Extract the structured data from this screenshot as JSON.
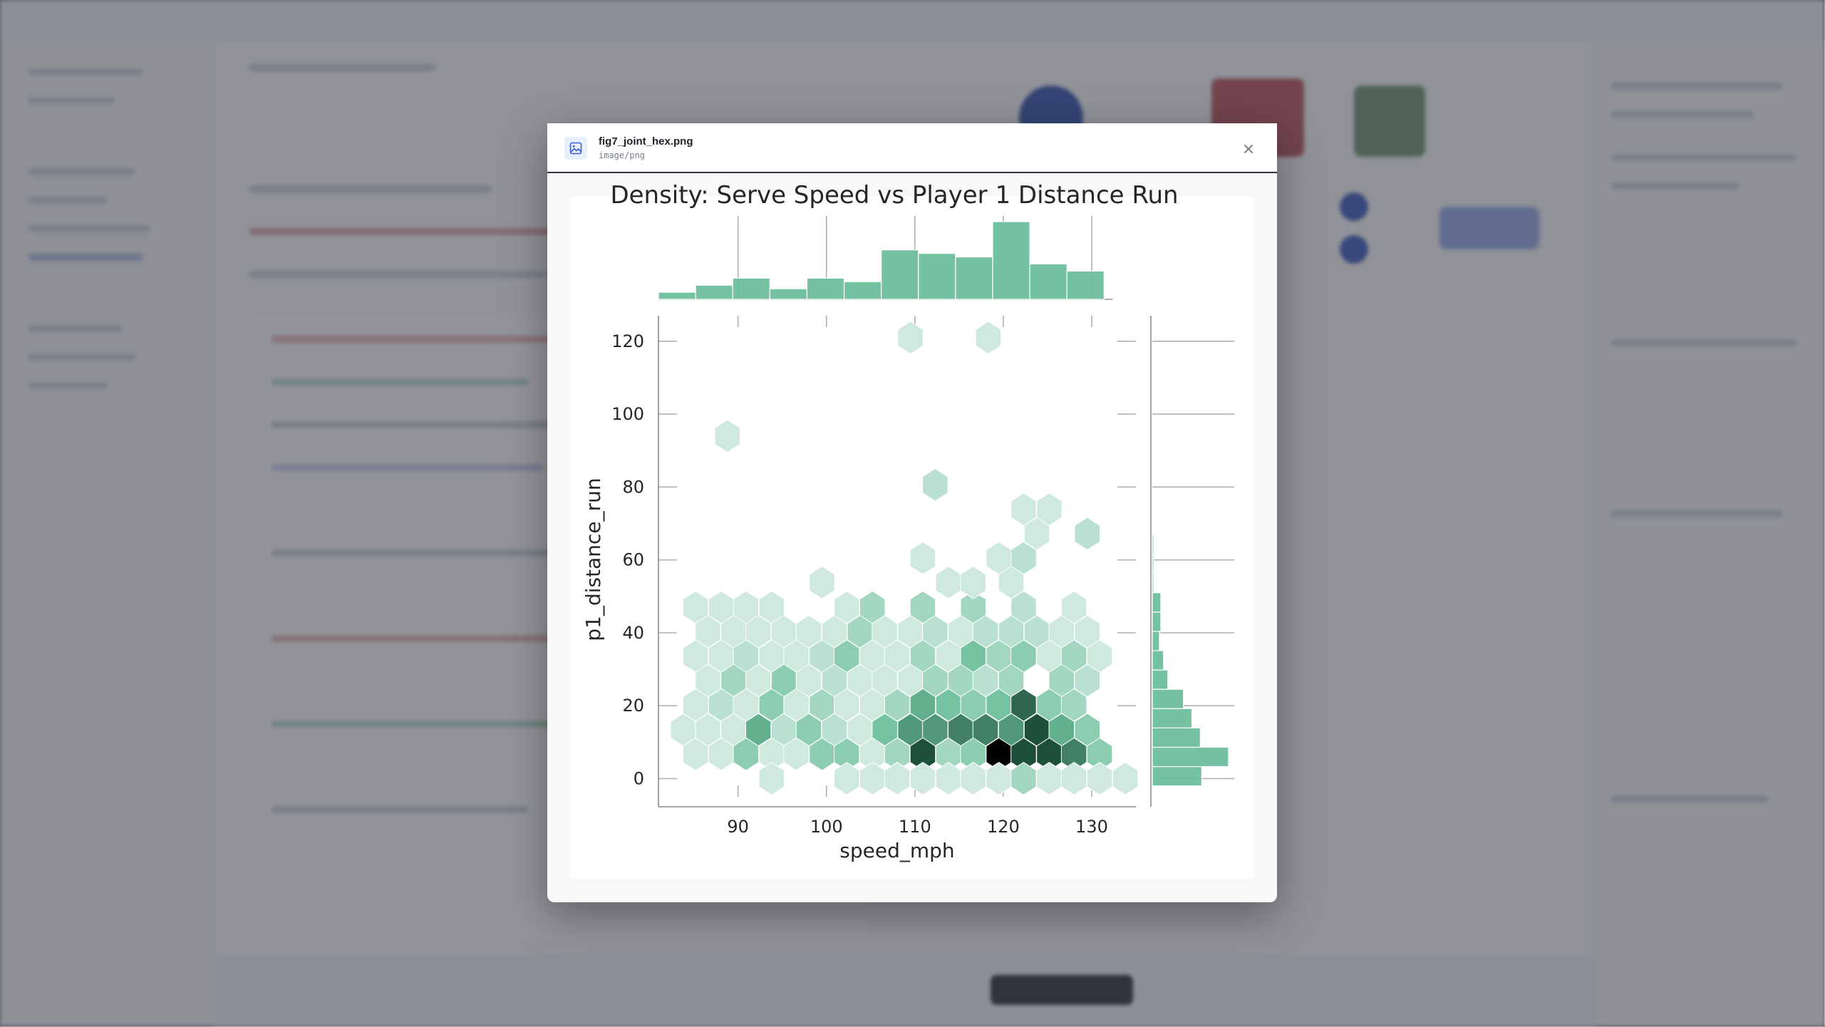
{
  "modal": {
    "file_name": "fig7_joint_hex.png",
    "file_type": "image/png",
    "icon": "image-icon",
    "close_icon": "close-icon"
  },
  "colors": {
    "accent": "#6dbf9c",
    "icon_blue": "#3b63d6"
  },
  "chart_data": {
    "type": "hexbin",
    "title": "Density: Serve Speed vs Player 1 Distance Run",
    "xlabel": "speed_mph",
    "ylabel": "p1_distance_run",
    "xlim": [
      81,
      135
    ],
    "ylim": [
      -5,
      127
    ],
    "xticks": [
      90,
      100,
      110,
      120,
      130
    ],
    "yticks": [
      0,
      20,
      40,
      60,
      80,
      100,
      120
    ],
    "grid": true,
    "hexbin": {
      "gridsize_x": 19,
      "x_spacing": 2.86,
      "y_spacing": 6.7,
      "max_count": 6,
      "cmap_light": "#e6f3ee",
      "cmap_mid": "#6dbf9c",
      "cmap_dark": "#1b4a36",
      "cmap_max": "#000000",
      "cells": [
        {
          "x": 85.2,
          "y": 47,
          "c": 0.5
        },
        {
          "x": 88.1,
          "y": 47,
          "c": 0.5
        },
        {
          "x": 90.9,
          "y": 47,
          "c": 0.5
        },
        {
          "x": 93.8,
          "y": 47,
          "c": 0.5
        },
        {
          "x": 102.3,
          "y": 47,
          "c": 0.5
        },
        {
          "x": 105.2,
          "y": 47,
          "c": 1.5
        },
        {
          "x": 110.9,
          "y": 47,
          "c": 1.5
        },
        {
          "x": 116.6,
          "y": 47,
          "c": 1.5
        },
        {
          "x": 122.3,
          "y": 47,
          "c": 1
        },
        {
          "x": 128,
          "y": 47,
          "c": 0.5
        },
        {
          "x": 86.6,
          "y": 40.3,
          "c": 0.5
        },
        {
          "x": 89.5,
          "y": 40.3,
          "c": 0.5
        },
        {
          "x": 92.3,
          "y": 40.3,
          "c": 0.5
        },
        {
          "x": 95.2,
          "y": 40.3,
          "c": 0.5
        },
        {
          "x": 98,
          "y": 40.3,
          "c": 0.5
        },
        {
          "x": 100.9,
          "y": 40.3,
          "c": 0.5
        },
        {
          "x": 103.8,
          "y": 40.3,
          "c": 1.5
        },
        {
          "x": 106.6,
          "y": 40.3,
          "c": 0.5
        },
        {
          "x": 109.5,
          "y": 40.3,
          "c": 0.5
        },
        {
          "x": 112.3,
          "y": 40.3,
          "c": 1
        },
        {
          "x": 115.2,
          "y": 40.3,
          "c": 0.5
        },
        {
          "x": 118,
          "y": 40.3,
          "c": 1
        },
        {
          "x": 120.9,
          "y": 40.3,
          "c": 1
        },
        {
          "x": 123.8,
          "y": 40.3,
          "c": 1
        },
        {
          "x": 126.6,
          "y": 40.3,
          "c": 0.5
        },
        {
          "x": 129.5,
          "y": 40.3,
          "c": 0.5
        },
        {
          "x": 85.2,
          "y": 33.6,
          "c": 0.5
        },
        {
          "x": 88.1,
          "y": 33.6,
          "c": 0.5
        },
        {
          "x": 90.9,
          "y": 33.6,
          "c": 1
        },
        {
          "x": 93.8,
          "y": 33.6,
          "c": 0.5
        },
        {
          "x": 96.6,
          "y": 33.6,
          "c": 0.5
        },
        {
          "x": 99.5,
          "y": 33.6,
          "c": 1
        },
        {
          "x": 102.3,
          "y": 33.6,
          "c": 2
        },
        {
          "x": 105.2,
          "y": 33.6,
          "c": 0.5
        },
        {
          "x": 108,
          "y": 33.6,
          "c": 0.5
        },
        {
          "x": 110.9,
          "y": 33.6,
          "c": 1.5
        },
        {
          "x": 113.8,
          "y": 33.6,
          "c": 0.5
        },
        {
          "x": 116.6,
          "y": 33.6,
          "c": 2.5
        },
        {
          "x": 119.5,
          "y": 33.6,
          "c": 1.5
        },
        {
          "x": 122.3,
          "y": 33.6,
          "c": 2
        },
        {
          "x": 125.2,
          "y": 33.6,
          "c": 0.5
        },
        {
          "x": 128,
          "y": 33.6,
          "c": 1.5
        },
        {
          "x": 130.9,
          "y": 33.6,
          "c": 0.5
        },
        {
          "x": 86.6,
          "y": 26.9,
          "c": 0.5
        },
        {
          "x": 89.5,
          "y": 26.9,
          "c": 1.5
        },
        {
          "x": 92.3,
          "y": 26.9,
          "c": 0.5
        },
        {
          "x": 95.2,
          "y": 26.9,
          "c": 2
        },
        {
          "x": 98,
          "y": 26.9,
          "c": 0.5
        },
        {
          "x": 100.9,
          "y": 26.9,
          "c": 1
        },
        {
          "x": 103.8,
          "y": 26.9,
          "c": 0.5
        },
        {
          "x": 106.6,
          "y": 26.9,
          "c": 0.5
        },
        {
          "x": 109.5,
          "y": 26.9,
          "c": 0.5
        },
        {
          "x": 112.3,
          "y": 26.9,
          "c": 1.5
        },
        {
          "x": 115.2,
          "y": 26.9,
          "c": 1.5
        },
        {
          "x": 118,
          "y": 26.9,
          "c": 1
        },
        {
          "x": 120.9,
          "y": 26.9,
          "c": 1.5
        },
        {
          "x": 126.6,
          "y": 26.9,
          "c": 1.5
        },
        {
          "x": 129.5,
          "y": 26.9,
          "c": 1
        },
        {
          "x": 85.2,
          "y": 20.2,
          "c": 0.5
        },
        {
          "x": 88.1,
          "y": 20.2,
          "c": 1
        },
        {
          "x": 90.9,
          "y": 20.2,
          "c": 0.5
        },
        {
          "x": 93.8,
          "y": 20.2,
          "c": 2
        },
        {
          "x": 96.6,
          "y": 20.2,
          "c": 0.5
        },
        {
          "x": 99.5,
          "y": 20.2,
          "c": 1.5
        },
        {
          "x": 102.3,
          "y": 20.2,
          "c": 0.5
        },
        {
          "x": 105.2,
          "y": 20.2,
          "c": 0.5
        },
        {
          "x": 108,
          "y": 20.2,
          "c": 1.5
        },
        {
          "x": 110.9,
          "y": 20.2,
          "c": 3
        },
        {
          "x": 113.8,
          "y": 20.2,
          "c": 2.5
        },
        {
          "x": 116.6,
          "y": 20.2,
          "c": 2
        },
        {
          "x": 119.5,
          "y": 20.2,
          "c": 2.5
        },
        {
          "x": 122.3,
          "y": 20.2,
          "c": 4.5
        },
        {
          "x": 125.2,
          "y": 20.2,
          "c": 2
        },
        {
          "x": 128,
          "y": 20.2,
          "c": 1.5
        },
        {
          "x": 83.8,
          "y": 13.4,
          "c": 0.5
        },
        {
          "x": 86.6,
          "y": 13.4,
          "c": 0.5
        },
        {
          "x": 89.5,
          "y": 13.4,
          "c": 0.5
        },
        {
          "x": 92.3,
          "y": 13.4,
          "c": 3
        },
        {
          "x": 95.2,
          "y": 13.4,
          "c": 1
        },
        {
          "x": 98,
          "y": 13.4,
          "c": 2
        },
        {
          "x": 100.9,
          "y": 13.4,
          "c": 1
        },
        {
          "x": 103.8,
          "y": 13.4,
          "c": 0.5
        },
        {
          "x": 106.6,
          "y": 13.4,
          "c": 2.5
        },
        {
          "x": 109.5,
          "y": 13.4,
          "c": 3.5
        },
        {
          "x": 112.3,
          "y": 13.4,
          "c": 3.5
        },
        {
          "x": 115.2,
          "y": 13.4,
          "c": 4
        },
        {
          "x": 118,
          "y": 13.4,
          "c": 4
        },
        {
          "x": 120.9,
          "y": 13.4,
          "c": 3.5
        },
        {
          "x": 123.8,
          "y": 13.4,
          "c": 5
        },
        {
          "x": 126.6,
          "y": 13.4,
          "c": 3
        },
        {
          "x": 129.5,
          "y": 13.4,
          "c": 2
        },
        {
          "x": 85.2,
          "y": 6.7,
          "c": 0.5
        },
        {
          "x": 88.1,
          "y": 6.7,
          "c": 0.5
        },
        {
          "x": 90.9,
          "y": 6.7,
          "c": 2
        },
        {
          "x": 93.8,
          "y": 6.7,
          "c": 0.5
        },
        {
          "x": 96.6,
          "y": 6.7,
          "c": 0.5
        },
        {
          "x": 99.5,
          "y": 6.7,
          "c": 2
        },
        {
          "x": 102.3,
          "y": 6.7,
          "c": 2
        },
        {
          "x": 105.2,
          "y": 6.7,
          "c": 0.5
        },
        {
          "x": 108,
          "y": 6.7,
          "c": 1.5
        },
        {
          "x": 110.9,
          "y": 6.7,
          "c": 5
        },
        {
          "x": 113.8,
          "y": 6.7,
          "c": 1.5
        },
        {
          "x": 116.6,
          "y": 6.7,
          "c": 2
        },
        {
          "x": 119.5,
          "y": 6.7,
          "c": 6
        },
        {
          "x": 122.3,
          "y": 6.7,
          "c": 5
        },
        {
          "x": 125.2,
          "y": 6.7,
          "c": 5
        },
        {
          "x": 128,
          "y": 6.7,
          "c": 4
        },
        {
          "x": 130.9,
          "y": 6.7,
          "c": 2
        },
        {
          "x": 93.8,
          "y": 0,
          "c": 0.5
        },
        {
          "x": 102.3,
          "y": 0,
          "c": 0.5
        },
        {
          "x": 105.2,
          "y": 0,
          "c": 0.5
        },
        {
          "x": 108,
          "y": 0,
          "c": 0.5
        },
        {
          "x": 110.9,
          "y": 0,
          "c": 0.5
        },
        {
          "x": 113.8,
          "y": 0,
          "c": 0.5
        },
        {
          "x": 116.6,
          "y": 0,
          "c": 0.5
        },
        {
          "x": 119.5,
          "y": 0,
          "c": 0.5
        },
        {
          "x": 122.3,
          "y": 0,
          "c": 1.5
        },
        {
          "x": 125.2,
          "y": 0,
          "c": 0.5
        },
        {
          "x": 128,
          "y": 0,
          "c": 0.5
        },
        {
          "x": 130.9,
          "y": 0,
          "c": 0.5
        },
        {
          "x": 133.8,
          "y": 0,
          "c": 0.5
        },
        {
          "x": 110.9,
          "y": 60.5,
          "c": 0.5
        },
        {
          "x": 113.8,
          "y": 53.8,
          "c": 0.5
        },
        {
          "x": 116.6,
          "y": 53.8,
          "c": 0.5
        },
        {
          "x": 119.5,
          "y": 60.5,
          "c": 0.5
        },
        {
          "x": 122.3,
          "y": 60.5,
          "c": 1
        },
        {
          "x": 120.9,
          "y": 53.8,
          "c": 0.5
        },
        {
          "x": 99.5,
          "y": 53.8,
          "c": 0.5
        },
        {
          "x": 122.3,
          "y": 73.9,
          "c": 0.5
        },
        {
          "x": 125.2,
          "y": 73.9,
          "c": 0.5
        },
        {
          "x": 123.8,
          "y": 67.2,
          "c": 0.5
        },
        {
          "x": 129.5,
          "y": 67.2,
          "c": 1
        },
        {
          "x": 112.3,
          "y": 80.6,
          "c": 1
        },
        {
          "x": 88.8,
          "y": 94,
          "c": 0.5
        },
        {
          "x": 109.5,
          "y": 121,
          "c": 0.5
        },
        {
          "x": 118.3,
          "y": 121,
          "c": 0.5
        }
      ]
    },
    "marginal_x": {
      "bin_edges": [
        81,
        85.2,
        89.4,
        93.6,
        97.8,
        102,
        106.2,
        110.4,
        114.6,
        118.8,
        123,
        127.2,
        131.4
      ],
      "counts": [
        2,
        4,
        6,
        3,
        6,
        5,
        14,
        13,
        12,
        22,
        10,
        8
      ]
    },
    "marginal_y": {
      "bin_edges": [
        -2,
        3.3,
        8.6,
        13.9,
        19.2,
        24.5,
        29.8,
        35.1,
        40.4,
        45.7,
        51,
        56.3,
        61.6,
        66.9
      ],
      "counts": [
        35,
        54,
        34,
        28,
        22,
        11,
        8,
        5,
        6,
        6,
        1,
        1,
        1
      ]
    }
  }
}
